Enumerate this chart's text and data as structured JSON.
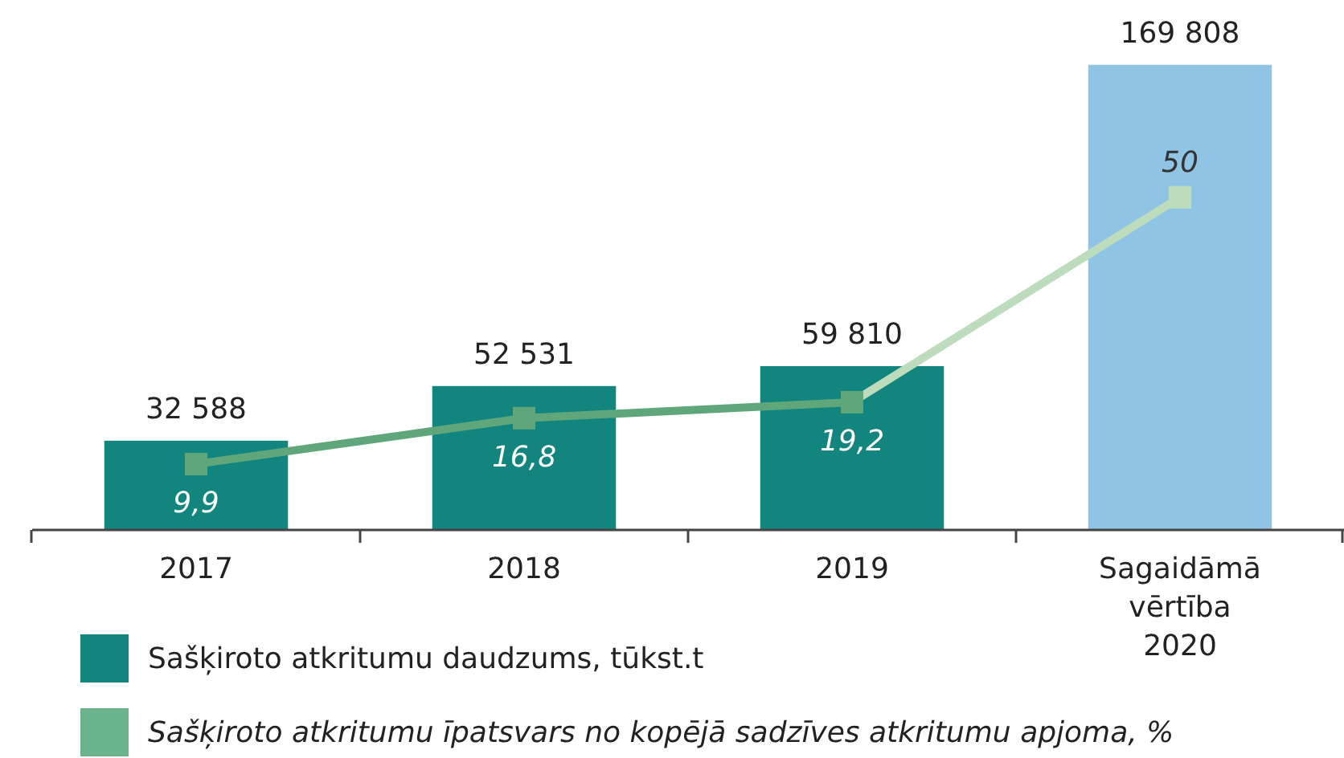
{
  "chart_data": {
    "type": "bar",
    "categories": [
      "2017",
      "2018",
      "2019",
      "Sagaidāmā vērtība 2020"
    ],
    "series": [
      {
        "name": "Sašķiroto atkritumu daudzums, tūkst.t",
        "color": "#12857f",
        "colors": [
          "#12857f",
          "#12857f",
          "#12857f",
          "#8fc4e4"
        ],
        "values": [
          32588,
          52531,
          59810,
          169808
        ],
        "value_labels": [
          "32 588",
          "52 531",
          "59 810",
          "169 808"
        ]
      },
      {
        "type": "line",
        "axis": "y2",
        "name": "Sašķiroto atkritumu īpatsvars no kopējā sadzīves atkritumu apjoma, %",
        "color": "#6bb38a",
        "colors": [
          "#5fa77a",
          "#5fa77a",
          "#5fa77a",
          "#bcdcbc"
        ],
        "values": [
          9.9,
          16.8,
          19.2,
          50
        ],
        "value_labels": [
          "9,9",
          "16,8",
          "19,2",
          "50"
        ]
      }
    ],
    "ylim": [
      0,
      170000
    ],
    "y2lim": [
      0,
      70
    ],
    "tick_labels": "x",
    "legend": "bottom",
    "marker": "square"
  }
}
